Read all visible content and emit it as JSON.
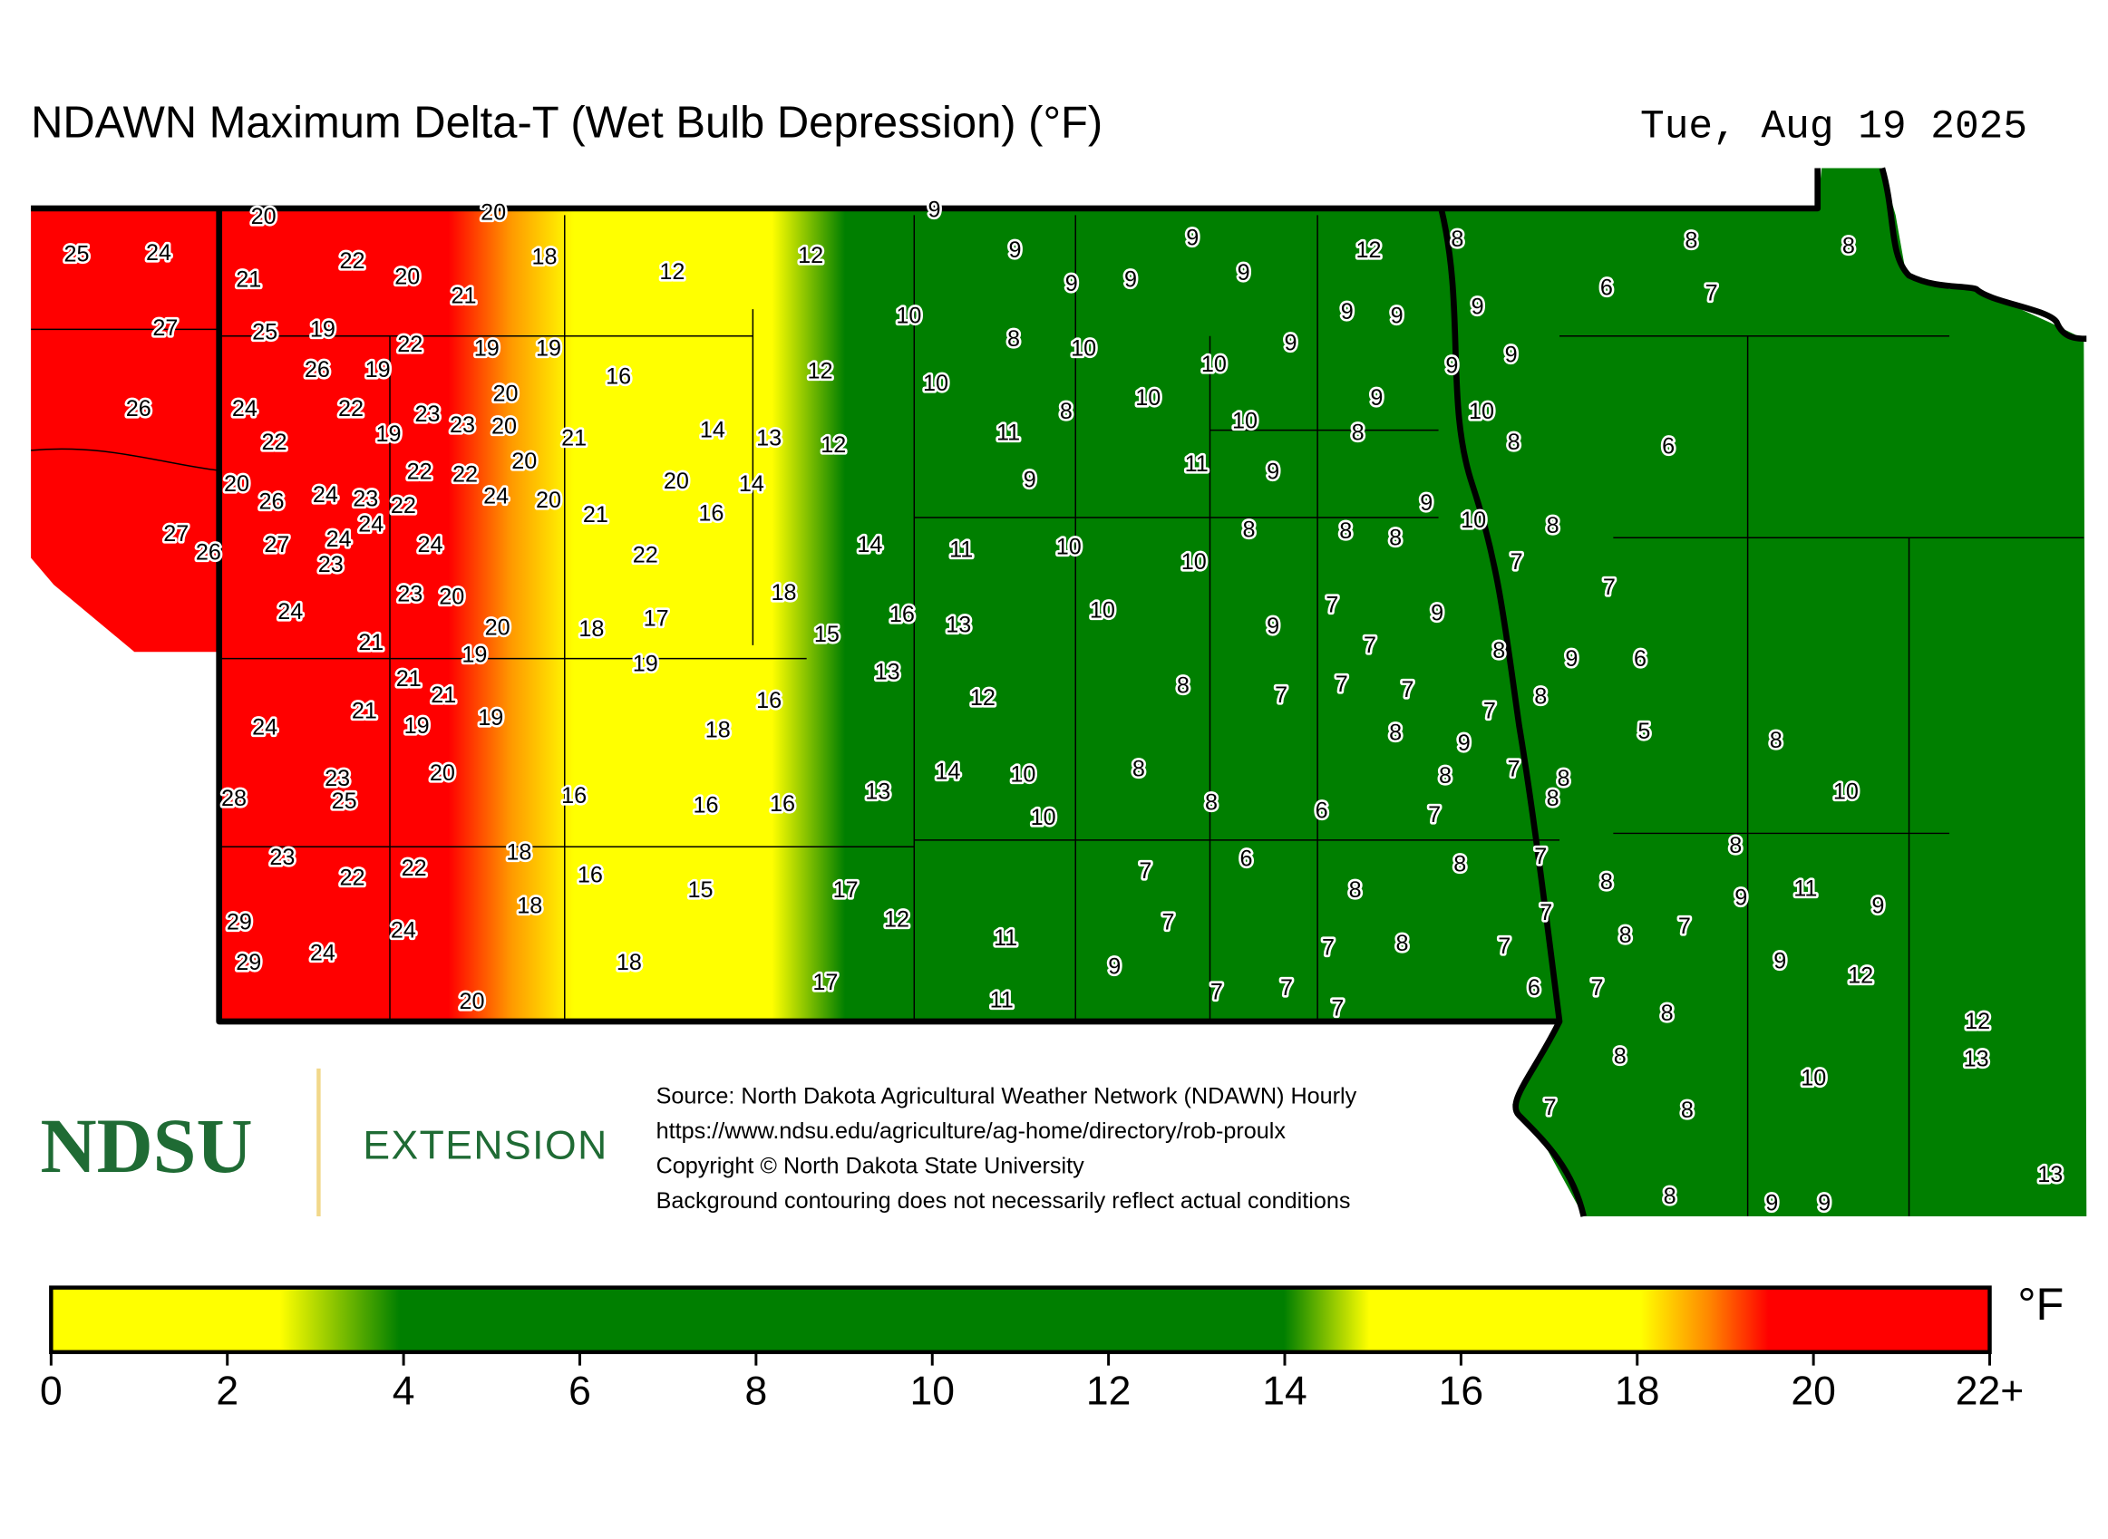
{
  "header": {
    "title": "NDAWN Maximum Delta-T (Wet Bulb Depression) (°F)",
    "date": "Tue, Aug 19 2025"
  },
  "stations": {
    "values": [
      20,
      20,
      9,
      25,
      24,
      22,
      20,
      21,
      21,
      18,
      12,
      12,
      9,
      9,
      9,
      9,
      9,
      12,
      8,
      8,
      8,
      6,
      7,
      9,
      9,
      9,
      27,
      25,
      19,
      10,
      8,
      10,
      10,
      9,
      9,
      9,
      22,
      19,
      19,
      26,
      19,
      16,
      12,
      10,
      26,
      24,
      22,
      23,
      23,
      20,
      20,
      19,
      21,
      14,
      13,
      12,
      11,
      8,
      10,
      10,
      9,
      10,
      8,
      8,
      6,
      22,
      22,
      22,
      20,
      11,
      9,
      9,
      20,
      26,
      24,
      23,
      22,
      24,
      20,
      21,
      20,
      14,
      16,
      9,
      10,
      27,
      26,
      27,
      24,
      24,
      23,
      24,
      22,
      14,
      11,
      10,
      10,
      8,
      8,
      8,
      8,
      7,
      7,
      24,
      23,
      20,
      18,
      16,
      13,
      10,
      7,
      9,
      9,
      20,
      18,
      17,
      15,
      21,
      19,
      19,
      7,
      8,
      9,
      6,
      21,
      21,
      13,
      7,
      7,
      8,
      7,
      12,
      7,
      8,
      21,
      19,
      19,
      24,
      18,
      16,
      8,
      9,
      5,
      8,
      20,
      23,
      25,
      28,
      16,
      16,
      16,
      13,
      14,
      10,
      10,
      8,
      8,
      6,
      8,
      7,
      8,
      8,
      7,
      10,
      23,
      22,
      22,
      18,
      16,
      15,
      17,
      7,
      6,
      8,
      8,
      7,
      8,
      8,
      9,
      11,
      9,
      29,
      24,
      18,
      12,
      11,
      7,
      8,
      7,
      7,
      7,
      8,
      7,
      9,
      12,
      29,
      24,
      18,
      17,
      9,
      7,
      7,
      7,
      6,
      7,
      8,
      12,
      20,
      11,
      8,
      10,
      13,
      7,
      8,
      13,
      8,
      9,
      9
    ]
  },
  "logo": {
    "name": "NDSU",
    "subtitle": "EXTENSION"
  },
  "source_lines": [
    "Source: North Dakota Agricultural Weather Network (NDAWN) Hourly",
    "https://www.ndsu.edu/agriculture/ag-home/directory/rob-proulx",
    "Copyright © North Dakota State University",
    "Background contouring does not necessarily reflect actual conditions"
  ],
  "legend": {
    "unit": "°F",
    "xlim": [
      0,
      22
    ],
    "xticks": [
      0,
      2,
      4,
      6,
      8,
      10,
      12,
      14,
      16,
      18,
      20,
      {
        "value": 22,
        "label": "22+"
      }
    ]
  }
}
